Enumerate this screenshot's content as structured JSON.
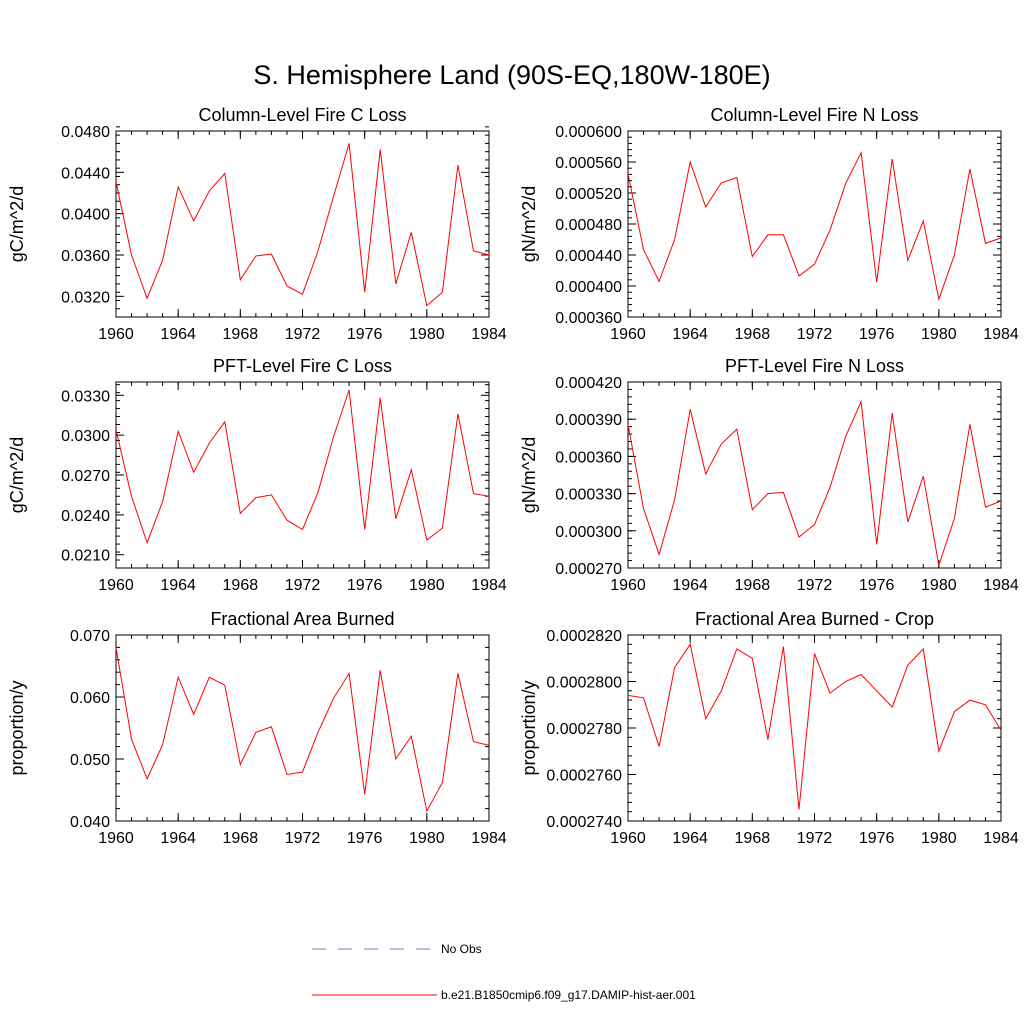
{
  "figure_title": "S. Hemisphere Land (90S-EQ,180W-180E)",
  "legend": [
    {
      "label": "No Obs",
      "color": "#7b7fc4",
      "style": "dashed"
    },
    {
      "label": "b.e21.B1850cmip6.f09_g17.DAMIP-hist-aer.001",
      "color": "#ff0000",
      "style": "solid"
    }
  ],
  "chart_data": [
    {
      "type": "line",
      "title": "Column-Level Fire C Loss",
      "ylabel": "gC/m^2/d",
      "xlim": [
        1960,
        1984
      ],
      "xticks": [
        1960,
        1964,
        1968,
        1972,
        1976,
        1980,
        1984
      ],
      "ylim": [
        0.03,
        0.048
      ],
      "yticks": [
        "0.0320",
        "0.0360",
        "0.0400",
        "0.0440",
        "0.0480"
      ],
      "x": [
        1960,
        1961,
        1962,
        1963,
        1964,
        1965,
        1966,
        1967,
        1968,
        1969,
        1970,
        1971,
        1972,
        1973,
        1974,
        1975,
        1976,
        1977,
        1978,
        1979,
        1980,
        1981,
        1982,
        1983,
        1984
      ],
      "series": [
        {
          "values": [
            0.0431,
            0.036,
            0.0318,
            0.0355,
            0.0426,
            0.0393,
            0.0422,
            0.0439,
            0.0336,
            0.0359,
            0.0361,
            0.033,
            0.0322,
            0.0364,
            0.0417,
            0.0468,
            0.0324,
            0.0462,
            0.0332,
            0.0382,
            0.0311,
            0.0324,
            0.0447,
            0.0364,
            0.036
          ],
          "color": "#ff0000"
        }
      ]
    },
    {
      "type": "line",
      "title": "Column-Level Fire N Loss",
      "ylabel": "gN/m^2/d",
      "xlim": [
        1960,
        1984
      ],
      "xticks": [
        1960,
        1964,
        1968,
        1972,
        1976,
        1980,
        1984
      ],
      "ylim": [
        0.00036,
        0.0006
      ],
      "yticks": [
        "0.000360",
        "0.000400",
        "0.000440",
        "0.000480",
        "0.000520",
        "0.000560",
        "0.000600"
      ],
      "x": [
        1960,
        1961,
        1962,
        1963,
        1964,
        1965,
        1966,
        1967,
        1968,
        1969,
        1970,
        1971,
        1972,
        1973,
        1974,
        1975,
        1976,
        1977,
        1978,
        1979,
        1980,
        1981,
        1982,
        1983,
        1984
      ],
      "series": [
        {
          "values": [
            0.000545,
            0.000447,
            0.000406,
            0.00046,
            0.00056,
            0.000502,
            0.000533,
            0.00054,
            0.000438,
            0.000466,
            0.000466,
            0.000413,
            0.000428,
            0.000472,
            0.000532,
            0.000572,
            0.000405,
            0.000564,
            0.000433,
            0.000484,
            0.000383,
            0.00044,
            0.000551,
            0.000455,
            0.000462
          ],
          "color": "#ff0000"
        }
      ]
    },
    {
      "type": "line",
      "title": "PFT-Level Fire C Loss",
      "ylabel": "gC/m^2/d",
      "xlim": [
        1960,
        1984
      ],
      "xticks": [
        1960,
        1964,
        1968,
        1972,
        1976,
        1980,
        1984
      ],
      "ylim": [
        0.02,
        0.034
      ],
      "yticks": [
        "0.0210",
        "0.0240",
        "0.0270",
        "0.0300",
        "0.0330"
      ],
      "x": [
        1960,
        1961,
        1962,
        1963,
        1964,
        1965,
        1966,
        1967,
        1968,
        1969,
        1970,
        1971,
        1972,
        1973,
        1974,
        1975,
        1976,
        1977,
        1978,
        1979,
        1980,
        1981,
        1982,
        1983,
        1984
      ],
      "series": [
        {
          "values": [
            0.0304,
            0.0254,
            0.0219,
            0.025,
            0.0303,
            0.0272,
            0.0294,
            0.031,
            0.0241,
            0.0253,
            0.0255,
            0.0236,
            0.0229,
            0.0257,
            0.0299,
            0.0334,
            0.0229,
            0.0328,
            0.0237,
            0.0274,
            0.0221,
            0.023,
            0.0316,
            0.0256,
            0.0254
          ],
          "color": "#ff0000"
        }
      ]
    },
    {
      "type": "line",
      "title": "PFT-Level Fire N Loss",
      "ylabel": "gN/m^2/d",
      "xlim": [
        1960,
        1984
      ],
      "xticks": [
        1960,
        1964,
        1968,
        1972,
        1976,
        1980,
        1984
      ],
      "ylim": [
        0.00027,
        0.00042
      ],
      "yticks": [
        "0.000270",
        "0.000300",
        "0.000330",
        "0.000360",
        "0.000390",
        "0.000420"
      ],
      "x": [
        1960,
        1961,
        1962,
        1963,
        1964,
        1965,
        1966,
        1967,
        1968,
        1969,
        1970,
        1971,
        1972,
        1973,
        1974,
        1975,
        1976,
        1977,
        1978,
        1979,
        1980,
        1981,
        1982,
        1983,
        1984
      ],
      "series": [
        {
          "values": [
            0.000386,
            0.000318,
            0.000281,
            0.000325,
            0.000398,
            0.000346,
            0.00037,
            0.000382,
            0.000317,
            0.00033,
            0.000331,
            0.000295,
            0.000305,
            0.000335,
            0.000376,
            0.000404,
            0.000289,
            0.000395,
            0.000307,
            0.000344,
            0.000272,
            0.00031,
            0.000386,
            0.000319,
            0.000324
          ],
          "color": "#ff0000"
        }
      ]
    },
    {
      "type": "line",
      "title": "Fractional Area Burned",
      "ylabel": "proportion/y",
      "xlim": [
        1960,
        1984
      ],
      "xticks": [
        1960,
        1964,
        1968,
        1972,
        1976,
        1980,
        1984
      ],
      "ylim": [
        0.04,
        0.07
      ],
      "yticks": [
        "0.040",
        "0.050",
        "0.060",
        "0.070"
      ],
      "x": [
        1960,
        1961,
        1962,
        1963,
        1964,
        1965,
        1966,
        1967,
        1968,
        1969,
        1970,
        1971,
        1972,
        1973,
        1974,
        1975,
        1976,
        1977,
        1978,
        1979,
        1980,
        1981,
        1982,
        1983,
        1984
      ],
      "series": [
        {
          "values": [
            0.068,
            0.0532,
            0.0468,
            0.0523,
            0.0632,
            0.0572,
            0.0632,
            0.0619,
            0.0491,
            0.0543,
            0.0552,
            0.0475,
            0.0479,
            0.0543,
            0.0598,
            0.0638,
            0.0443,
            0.0643,
            0.05,
            0.0537,
            0.0416,
            0.0462,
            0.0638,
            0.0528,
            0.0522
          ],
          "color": "#ff0000"
        }
      ]
    },
    {
      "type": "line",
      "title": "Fractional Area Burned - Crop",
      "ylabel": "proportion/y",
      "xlim": [
        1960,
        1984
      ],
      "xticks": [
        1960,
        1964,
        1968,
        1972,
        1976,
        1980,
        1984
      ],
      "ylim": [
        0.000274,
        0.000282
      ],
      "yticks": [
        "0.0002740",
        "0.0002760",
        "0.0002780",
        "0.0002800",
        "0.0002820"
      ],
      "x": [
        1960,
        1961,
        1962,
        1963,
        1964,
        1965,
        1966,
        1967,
        1968,
        1969,
        1970,
        1971,
        1972,
        1973,
        1974,
        1975,
        1976,
        1977,
        1978,
        1979,
        1980,
        1981,
        1982,
        1983,
        1984
      ],
      "series": [
        {
          "values": [
            0.0002794,
            0.0002793,
            0.0002772,
            0.0002806,
            0.0002816,
            0.0002784,
            0.0002796,
            0.0002814,
            0.000281,
            0.0002775,
            0.0002815,
            0.0002745,
            0.0002812,
            0.0002795,
            0.00028,
            0.0002803,
            0.0002796,
            0.0002789,
            0.0002807,
            0.0002814,
            0.000277,
            0.0002787,
            0.0002792,
            0.000279,
            0.0002779
          ],
          "color": "#ff0000"
        }
      ]
    }
  ]
}
